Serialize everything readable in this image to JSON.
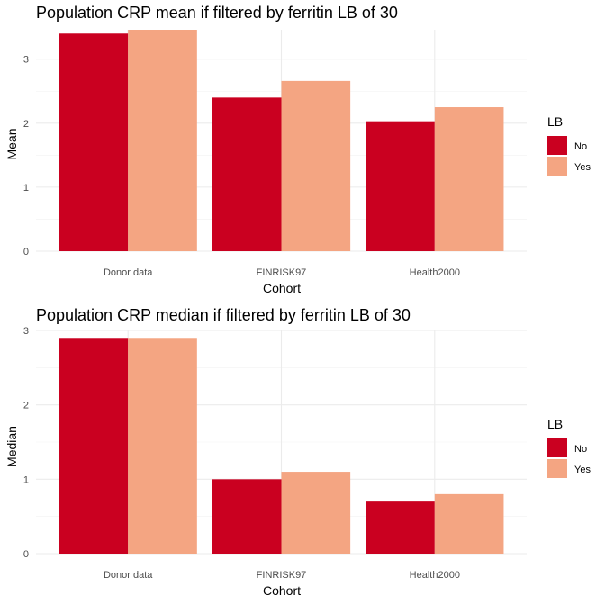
{
  "chart_data": [
    {
      "type": "bar",
      "title": "Population CRP mean if filtered by ferritin LB of 30",
      "xlabel": "Cohort",
      "ylabel": "Mean",
      "categories": [
        "Donor data",
        "FINRISK97",
        "Health2000"
      ],
      "series": [
        {
          "name": "No",
          "values": [
            3.4,
            2.4,
            2.03
          ]
        },
        {
          "name": "Yes",
          "values": [
            3.46,
            2.66,
            2.25
          ]
        }
      ],
      "ylim": [
        0,
        3.46
      ],
      "yticks": [
        0,
        1,
        2,
        3
      ],
      "legend": {
        "title": "LB",
        "position": "right"
      },
      "grid": true
    },
    {
      "type": "bar",
      "title": "Population CRP median if filtered by ferritin LB of 30",
      "xlabel": "Cohort",
      "ylabel": "Median",
      "categories": [
        "Donor data",
        "FINRISK97",
        "Health2000"
      ],
      "series": [
        {
          "name": "No",
          "values": [
            2.9,
            1.0,
            0.7
          ]
        },
        {
          "name": "Yes",
          "values": [
            2.9,
            1.1,
            0.8
          ]
        }
      ],
      "ylim": [
        0,
        3.0
      ],
      "yticks": [
        0,
        1,
        2,
        3
      ],
      "legend": {
        "title": "LB",
        "position": "right"
      },
      "grid": true
    }
  ],
  "colors": {
    "No": "#ca0020",
    "Yes": "#f4a582"
  }
}
